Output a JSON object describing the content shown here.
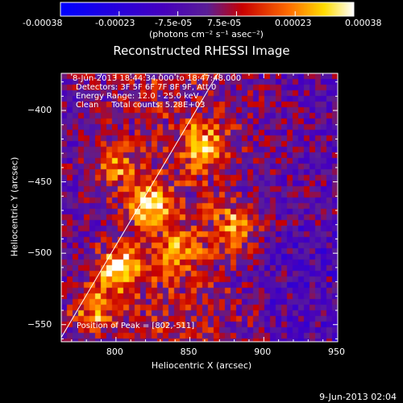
{
  "colorbar": {
    "tick_labels": [
      "-0.00038",
      "-0.00023",
      "-7.5e-05",
      "7.5e-05",
      "0.00023",
      "0.00038"
    ],
    "unit_label": "(photons cm⁻² s⁻¹ asec⁻²)"
  },
  "info": {
    "time_range": "8-Jun-2013 18:44:34.000 to 18:47:48.000",
    "detectors": "Detectors: 3F 5F 6F 7F 8F 9F, Att 0",
    "energy": "Energy Range: 12.0 - 25.0 keV",
    "algorithm": "Clean     Total counts: 5.28E+03",
    "peak": "Position of Peak = [802,-511]"
  },
  "footer": {
    "date": "9-Jun-2013 02:04"
  },
  "chart_data": {
    "type": "heatmap",
    "title": "Reconstructed RHESSI Image",
    "xlabel": "Heliocentric X (arcsec)",
    "ylabel": "Heliocentric Y (arcsec)",
    "xlim": [
      763,
      950
    ],
    "ylim": [
      -562,
      -374
    ],
    "x_ticks": [
      800,
      850,
      900,
      950
    ],
    "y_ticks": [
      -400,
      -450,
      -500,
      -550
    ],
    "color_range": [
      -0.00038,
      0.00038
    ],
    "colormap": "rainbow-blue-to-white",
    "peak": [
      802,
      -511
    ],
    "limb_line": [
      [
        763,
        -559
      ],
      [
        869,
        -374
      ]
    ],
    "bright_regions": [
      {
        "x": 802,
        "y": -511,
        "intensity": 1.0
      },
      {
        "x": 823,
        "y": -466,
        "intensity": 0.85
      },
      {
        "x": 785,
        "y": -540,
        "intensity": 0.7
      },
      {
        "x": 860,
        "y": -425,
        "intensity": 0.75
      },
      {
        "x": 880,
        "y": -480,
        "intensity": 0.6
      },
      {
        "x": 800,
        "y": -440,
        "intensity": 0.55
      },
      {
        "x": 840,
        "y": -500,
        "intensity": 0.55
      }
    ]
  }
}
